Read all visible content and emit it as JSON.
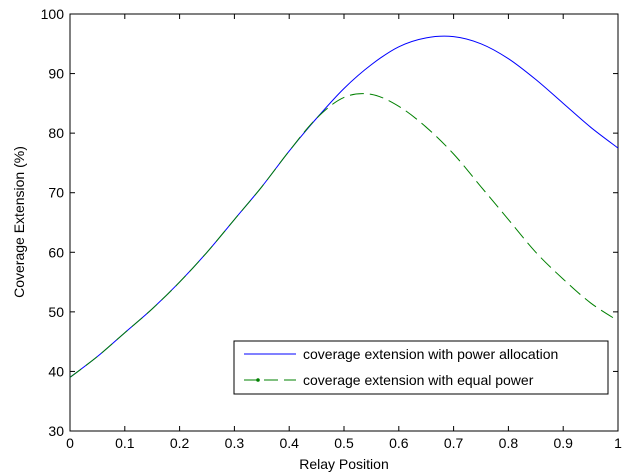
{
  "chart_data": {
    "type": "line",
    "title": "",
    "xlabel": "Relay Position",
    "ylabel": "Coverage Extension (%)",
    "xlim": [
      0,
      1
    ],
    "ylim": [
      30,
      100
    ],
    "xticks": [
      0,
      0.1,
      0.2,
      0.3,
      0.4,
      0.5,
      0.6,
      0.7,
      0.8,
      0.9,
      1
    ],
    "yticks": [
      30,
      40,
      50,
      60,
      70,
      80,
      90,
      100
    ],
    "xtick_labels": [
      "0",
      "0.1",
      "0.2",
      "0.3",
      "0.4",
      "0.5",
      "0.6",
      "0.7",
      "0.8",
      "0.9",
      "1"
    ],
    "ytick_labels": [
      "30",
      "40",
      "50",
      "60",
      "70",
      "80",
      "90",
      "100"
    ],
    "grid": false,
    "legend_position": "bottom-right",
    "series": [
      {
        "name": "coverage extension with power allocation",
        "color": "#0000ff",
        "line_style": "solid",
        "x": [
          0,
          0.05,
          0.1,
          0.15,
          0.2,
          0.25,
          0.3,
          0.35,
          0.4,
          0.45,
          0.5,
          0.55,
          0.6,
          0.65,
          0.7,
          0.75,
          0.8,
          0.85,
          0.9,
          0.95,
          1.0
        ],
        "y": [
          39.0,
          42.5,
          46.5,
          50.5,
          55.0,
          60.0,
          65.5,
          71.0,
          77.0,
          82.5,
          87.5,
          91.5,
          94.5,
          96.0,
          96.2,
          95.0,
          92.5,
          89.0,
          85.0,
          81.0,
          77.5
        ]
      },
      {
        "name": "coverage extension with equal power",
        "color": "#008000",
        "line_style": "dashed",
        "x": [
          0,
          0.05,
          0.1,
          0.15,
          0.2,
          0.25,
          0.3,
          0.35,
          0.4,
          0.45,
          0.5,
          0.55,
          0.6,
          0.65,
          0.7,
          0.75,
          0.8,
          0.85,
          0.9,
          0.95,
          1.0
        ],
        "y": [
          39.0,
          42.5,
          46.5,
          50.5,
          55.0,
          60.0,
          65.5,
          71.0,
          77.0,
          82.5,
          86.0,
          86.5,
          84.5,
          81.0,
          76.5,
          71.0,
          65.5,
          60.0,
          55.5,
          51.5,
          48.5
        ]
      }
    ]
  }
}
